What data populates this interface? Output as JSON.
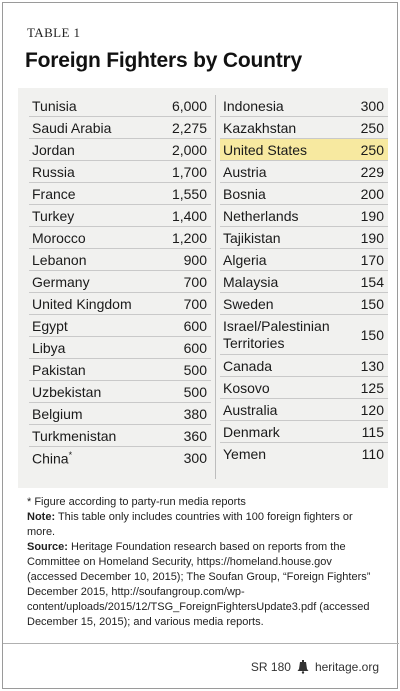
{
  "table_label": "TABLE 1",
  "title": "Foreign Fighters by Country",
  "chart_data": {
    "type": "table",
    "title": "Foreign Fighters by Country",
    "highlight": "United States",
    "highlight_color": "#f7e9a0",
    "left_column": [
      {
        "country": "Tunisia",
        "value": "6,000"
      },
      {
        "country": "Saudi Arabia",
        "value": "2,275"
      },
      {
        "country": "Jordan",
        "value": "2,000"
      },
      {
        "country": "Russia",
        "value": "1,700"
      },
      {
        "country": "France",
        "value": "1,550"
      },
      {
        "country": "Turkey",
        "value": "1,400"
      },
      {
        "country": "Morocco",
        "value": "1,200"
      },
      {
        "country": "Lebanon",
        "value": "900"
      },
      {
        "country": "Germany",
        "value": "700"
      },
      {
        "country": "United Kingdom",
        "value": "700"
      },
      {
        "country": "Egypt",
        "value": "600"
      },
      {
        "country": "Libya",
        "value": "600"
      },
      {
        "country": "Pakistan",
        "value": "500"
      },
      {
        "country": "Uzbekistan",
        "value": "500"
      },
      {
        "country": "Belgium",
        "value": "380"
      },
      {
        "country": "Turkmenistan",
        "value": "360"
      },
      {
        "country": "China",
        "value": "300",
        "footnote_mark": "*"
      }
    ],
    "right_column": [
      {
        "country": "Indonesia",
        "value": "300"
      },
      {
        "country": "Kazakhstan",
        "value": "250"
      },
      {
        "country": "United States",
        "value": "250",
        "highlight": true
      },
      {
        "country": "Austria",
        "value": "229"
      },
      {
        "country": "Bosnia",
        "value": "200"
      },
      {
        "country": "Netherlands",
        "value": "190"
      },
      {
        "country": "Tajikistan",
        "value": "190"
      },
      {
        "country": "Algeria",
        "value": "170"
      },
      {
        "country": "Malaysia",
        "value": "154"
      },
      {
        "country": "Sweden",
        "value": "150"
      },
      {
        "country": "Israel/Palestinian Territories",
        "value": "150",
        "multiline": true
      },
      {
        "country": "Canada",
        "value": "130"
      },
      {
        "country": "Kosovo",
        "value": "125"
      },
      {
        "country": "Australia",
        "value": "120"
      },
      {
        "country": "Denmark",
        "value": "115"
      },
      {
        "country": "Yemen",
        "value": "110"
      }
    ]
  },
  "notes": {
    "footnote": "* Figure according to party-run media reports",
    "note_label": "Note:",
    "note_text": " This table only includes countries with 100 foreign fighters or more.",
    "source_label": "Source:",
    "source_text": " Heritage Foundation research based on reports from the Committee on Homeland Security, https://homeland.house.gov (accessed December 10, 2015); The Soufan Group, “Foreign Fighters” December 2015, http://soufangroup.com/wp-content/uploads/2015/12/TSG_ForeignFightersUpdate3.pdf (accessed December 15, 2015); and various media reports."
  },
  "footer": {
    "report_id": "SR 180",
    "site": "heritage.org",
    "logo_icon": "liberty-bell-icon"
  }
}
